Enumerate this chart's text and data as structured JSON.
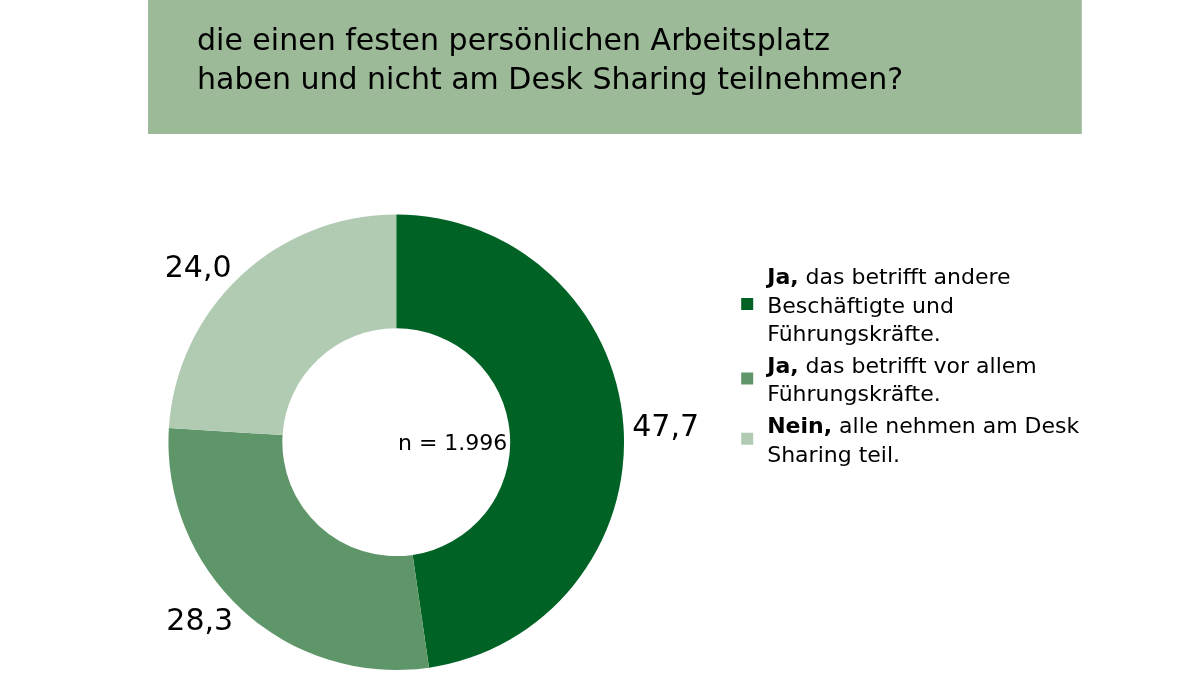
{
  "chart_data": {
    "type": "donut",
    "title": "die einen festen persönlichen Arbeitsplatz\nhaben und nicht am Desk Sharing teilnehmen?",
    "categories": [
      "Ja, das betrifft andere Beschäftigte und Führungskräfte.",
      "Ja, das betrifft vor allem Führungskräfte.",
      "Nein, alle nehmen am Desk Sharing teil."
    ],
    "values": [
      47.7,
      28.3,
      24.0
    ],
    "value_labels": [
      "47,7",
      "28,3",
      "24,0"
    ],
    "colors": [
      "#006325",
      "#5f9669",
      "#b1cbb3"
    ],
    "annotations": [
      "n = 1.996"
    ],
    "legend": "right"
  }
}
